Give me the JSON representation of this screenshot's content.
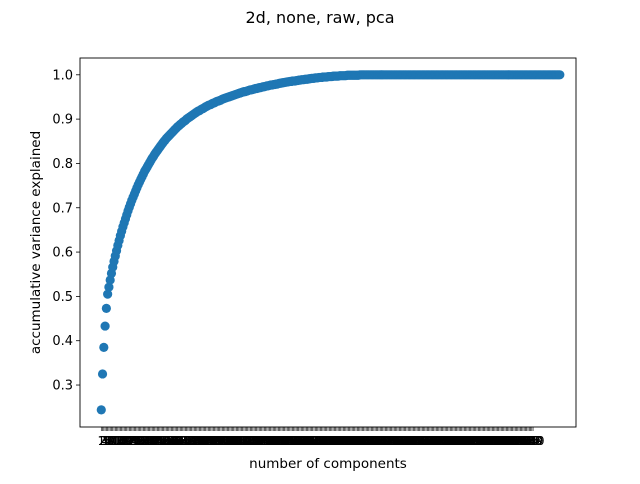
{
  "chart_data": {
    "type": "scatter",
    "title": "2d, none, raw, pca",
    "xlabel": "number of components",
    "ylabel": "accumulative variance explained",
    "xlim": [
      -15.7,
      373.7
    ],
    "ylim": [
      0.2053,
      1.0379
    ],
    "ytick_values": [
      0.3,
      0.4,
      0.5,
      0.6,
      0.7,
      0.8,
      0.9,
      1.0
    ],
    "ytick_labels": [
      "0.3",
      "0.4",
      "0.5",
      "0.6",
      "0.7",
      "0.8",
      "0.9",
      "1.0"
    ],
    "n_points": 340,
    "x_start": 1,
    "x_step": 1,
    "marker_color": "#1f77b4",
    "grid": false,
    "legend": "none",
    "values": [
      0.244,
      0.325,
      0.385,
      0.433,
      0.473,
      0.505,
      0.521,
      0.537,
      0.552,
      0.566,
      0.579,
      0.591,
      0.603,
      0.615,
      0.626,
      0.637,
      0.647,
      0.657,
      0.666,
      0.675,
      0.684,
      0.693,
      0.701,
      0.709,
      0.717,
      0.724,
      0.731,
      0.738,
      0.745,
      0.752,
      0.758,
      0.764,
      0.77,
      0.776,
      0.782,
      0.787,
      0.792,
      0.797,
      0.802,
      0.807,
      0.812,
      0.816,
      0.821,
      0.825,
      0.829,
      0.833,
      0.837,
      0.841,
      0.845,
      0.849,
      0.852,
      0.856,
      0.859,
      0.862,
      0.865,
      0.868,
      0.871,
      0.874,
      0.877,
      0.88,
      0.883,
      0.885,
      0.888,
      0.89,
      0.893,
      0.895,
      0.897,
      0.9,
      0.902,
      0.904,
      0.906,
      0.908,
      0.91,
      0.912,
      0.914,
      0.916,
      0.918,
      0.919,
      0.921,
      0.923,
      0.924,
      0.926,
      0.928,
      0.929,
      0.931,
      0.932,
      0.933,
      0.935,
      0.936,
      0.937,
      0.939,
      0.94,
      0.941,
      0.942,
      0.943,
      0.945,
      0.946,
      0.947,
      0.948,
      0.949,
      0.95,
      0.951,
      0.952,
      0.953,
      0.954,
      0.955,
      0.956,
      0.957,
      0.958,
      0.959,
      0.96,
      0.961,
      0.962,
      0.962,
      0.963,
      0.964,
      0.965,
      0.966,
      0.966,
      0.967,
      0.968,
      0.969,
      0.969,
      0.97,
      0.971,
      0.971,
      0.972,
      0.973,
      0.973,
      0.974,
      0.975,
      0.975,
      0.976,
      0.977,
      0.977,
      0.978,
      0.978,
      0.979,
      0.979,
      0.98,
      0.981,
      0.981,
      0.982,
      0.982,
      0.983,
      0.983,
      0.984,
      0.984,
      0.985,
      0.985,
      0.986,
      0.986,
      0.986,
      0.987,
      0.987,
      0.988,
      0.988,
      0.989,
      0.989,
      0.989,
      0.99,
      0.99,
      0.99,
      0.991,
      0.991,
      0.992,
      0.992,
      0.992,
      0.993,
      0.993,
      0.993,
      0.994,
      0.994,
      0.994,
      0.995,
      0.995,
      0.995,
      0.995,
      0.996,
      0.996,
      0.996,
      0.996,
      0.997,
      0.997,
      0.997,
      0.997,
      0.997,
      0.998,
      0.998,
      0.998,
      0.998,
      0.998,
      0.998,
      0.999,
      0.999,
      0.999,
      0.999,
      0.999,
      0.999,
      0.999,
      0.999,
      0.999,
      0.999,
      1.0,
      1.0,
      1.0,
      1.0,
      1.0,
      1.0,
      1.0,
      1.0,
      1.0,
      1.0,
      1.0,
      1.0,
      1.0,
      1.0,
      1.0,
      1.0,
      1.0,
      1.0,
      1.0,
      1.0,
      1.0,
      1.0,
      1.0,
      1.0,
      1.0,
      1.0,
      1.0,
      1.0,
      1.0,
      1.0,
      1.0,
      1.0,
      1.0,
      1.0,
      1.0,
      1.0,
      1.0,
      1.0,
      1.0,
      1.0,
      1.0,
      1.0,
      1.0,
      1.0,
      1.0,
      1.0,
      1.0,
      1.0,
      1.0,
      1.0,
      1.0,
      1.0,
      1.0,
      1.0,
      1.0,
      1.0,
      1.0,
      1.0,
      1.0,
      1.0,
      1.0,
      1.0,
      1.0,
      1.0,
      1.0,
      1.0,
      1.0,
      1.0,
      1.0,
      1.0,
      1.0,
      1.0,
      1.0,
      1.0,
      1.0,
      1.0,
      1.0,
      1.0,
      1.0,
      1.0,
      1.0,
      1.0,
      1.0,
      1.0,
      1.0,
      1.0,
      1.0,
      1.0,
      1.0,
      1.0,
      1.0,
      1.0,
      1.0,
      1.0,
      1.0,
      1.0,
      1.0,
      1.0,
      1.0,
      1.0,
      1.0,
      1.0,
      1.0,
      1.0,
      1.0,
      1.0,
      1.0,
      1.0,
      1.0,
      1.0,
      1.0,
      1.0,
      1.0,
      1.0,
      1.0,
      1.0,
      1.0,
      1.0,
      1.0,
      1.0,
      1.0,
      1.0,
      1.0,
      1.0,
      1.0,
      1.0,
      1.0,
      1.0,
      1.0,
      1.0,
      1.0,
      1.0,
      1.0,
      1.0,
      1.0,
      1.0,
      1.0,
      1.0,
      1.0,
      1.0,
      1.0,
      1.0,
      1.0,
      1.0,
      1.0,
      1.0,
      1.0,
      1.0,
      1.0,
      1.0,
      1.0,
      1.0,
      1.0,
      1.0,
      1.0,
      1.0,
      1.0,
      1.0
    ]
  }
}
